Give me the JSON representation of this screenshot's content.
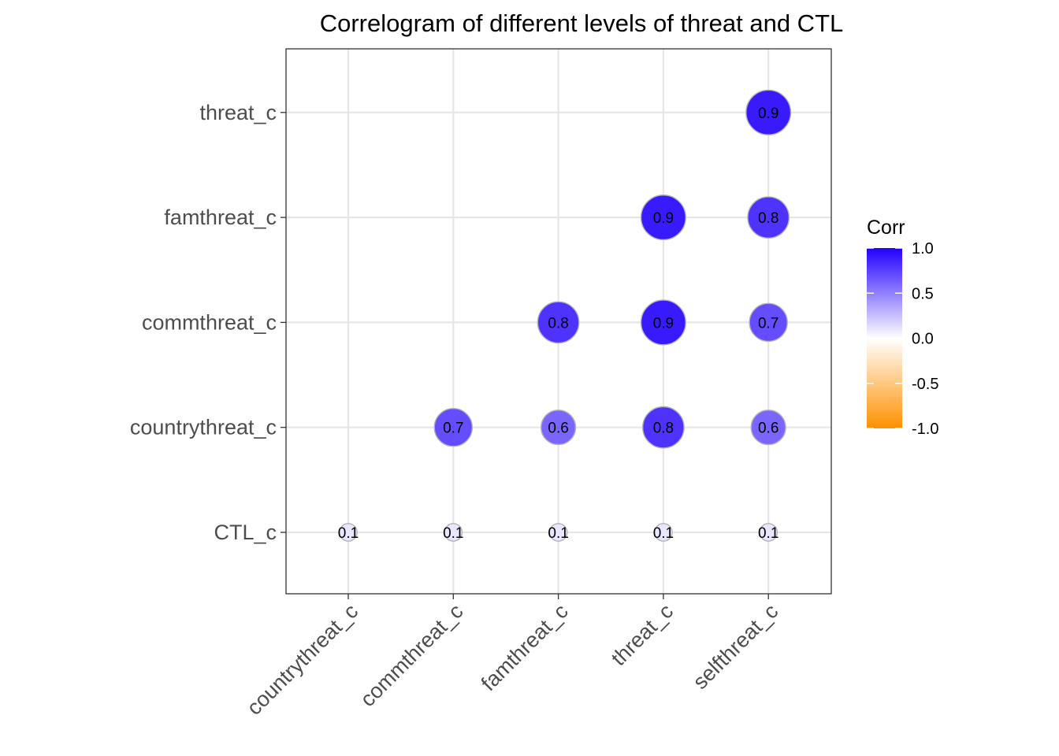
{
  "chart_data": {
    "type": "heatmap",
    "title": "Correlogram of different levels of threat and CTL",
    "x_categories": [
      "countrythreat_c",
      "commthreat_c",
      "famthreat_c",
      "threat_c",
      "selfthreat_c"
    ],
    "y_categories": [
      "CTL_c",
      "countrythreat_c",
      "commthreat_c",
      "famthreat_c",
      "threat_c"
    ],
    "cells": [
      {
        "x": "countrythreat_c",
        "y": "CTL_c",
        "value": 0.1
      },
      {
        "x": "commthreat_c",
        "y": "CTL_c",
        "value": 0.1
      },
      {
        "x": "famthreat_c",
        "y": "CTL_c",
        "value": 0.1
      },
      {
        "x": "threat_c",
        "y": "CTL_c",
        "value": 0.1
      },
      {
        "x": "selfthreat_c",
        "y": "CTL_c",
        "value": 0.1
      },
      {
        "x": "commthreat_c",
        "y": "countrythreat_c",
        "value": 0.7
      },
      {
        "x": "famthreat_c",
        "y": "countrythreat_c",
        "value": 0.6
      },
      {
        "x": "threat_c",
        "y": "countrythreat_c",
        "value": 0.8
      },
      {
        "x": "selfthreat_c",
        "y": "countrythreat_c",
        "value": 0.6
      },
      {
        "x": "famthreat_c",
        "y": "commthreat_c",
        "value": 0.8
      },
      {
        "x": "threat_c",
        "y": "commthreat_c",
        "value": 0.9
      },
      {
        "x": "selfthreat_c",
        "y": "commthreat_c",
        "value": 0.7
      },
      {
        "x": "threat_c",
        "y": "famthreat_c",
        "value": 0.9
      },
      {
        "x": "selfthreat_c",
        "y": "famthreat_c",
        "value": 0.8
      },
      {
        "x": "selfthreat_c",
        "y": "threat_c",
        "value": 0.9
      }
    ],
    "legend": {
      "title": "Corr",
      "ticks": [
        "1.0",
        "0.5",
        "0.0",
        "-0.5",
        "-1.0"
      ],
      "range": [
        -1,
        1
      ],
      "colors": {
        "low": "#FF9000",
        "mid": "#FFFFFF",
        "high": "#2200FF"
      }
    },
    "grid": true
  }
}
